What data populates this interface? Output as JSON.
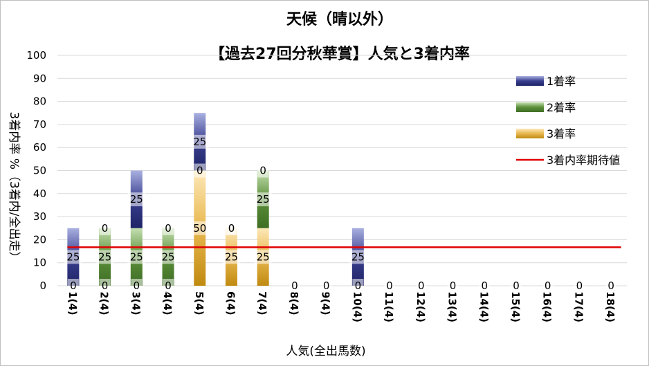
{
  "chart_data": {
    "type": "bar",
    "stacked": true,
    "title": "天候（晴以外）",
    "subtitle": "【過去27回分秋華賞】人気と3着内率",
    "xlabel": "人気(全出馬数)",
    "ylabel": "3着内率 %（3着内/全出走）",
    "ylim": [
      0,
      100
    ],
    "yticks": [
      0,
      10,
      20,
      30,
      40,
      50,
      60,
      70,
      80,
      90,
      100
    ],
    "grid": true,
    "legend_position": "right",
    "categories": [
      "1(4)",
      "2(4)",
      "3(4)",
      "4(4)",
      "5(4)",
      "6(4)",
      "7(4)",
      "8(4)",
      "9(4)",
      "10(4)",
      "11(4)",
      "12(4)",
      "13(4)",
      "14(4)",
      "15(4)",
      "16(4)",
      "17(4)",
      "18(4)"
    ],
    "series": [
      {
        "name": "3着率",
        "color": "#d9a520",
        "values": [
          0,
          0,
          0,
          0,
          50,
          25,
          25,
          0,
          0,
          0,
          0,
          0,
          0,
          0,
          0,
          0,
          0,
          0
        ]
      },
      {
        "name": "2着率",
        "color": "#5b8f3a",
        "values": [
          0,
          25,
          25,
          25,
          0,
          0,
          25,
          0,
          0,
          0,
          0,
          0,
          0,
          0,
          0,
          0,
          0,
          0
        ]
      },
      {
        "name": "1着率",
        "color": "#3a3f8f",
        "values": [
          25,
          0,
          25,
          0,
          25,
          0,
          0,
          0,
          0,
          25,
          0,
          0,
          0,
          0,
          0,
          0,
          0,
          0
        ]
      }
    ],
    "expected_line": {
      "name": "3着内率期待値",
      "color": "#e00000",
      "value": 16.7
    },
    "legend_order": [
      "1着率",
      "2着率",
      "3着率",
      "3着内率期待値"
    ]
  }
}
